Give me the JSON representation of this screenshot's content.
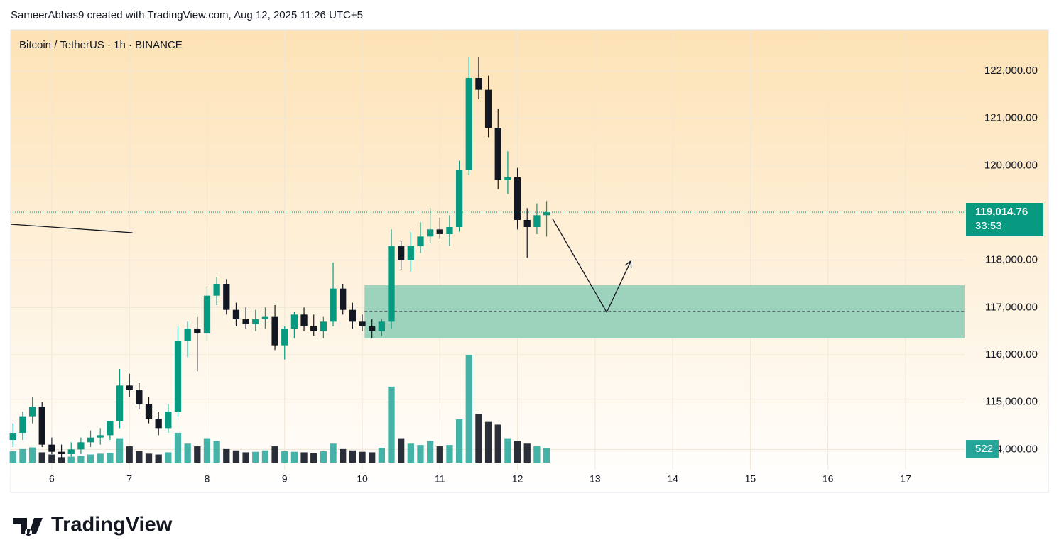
{
  "header": "SameerAbbas9 created with TradingView.com, Aug 12, 2025 11:26 UTC+5",
  "logo": "TradingView",
  "chart_data": {
    "type": "candlestick",
    "title": "Bitcoin / TetherUS · 1h · BINANCE",
    "xlim": [
      5.47,
      17.76
    ],
    "xticks": [
      6,
      7,
      8,
      9,
      10,
      11,
      12,
      13,
      14,
      15,
      16,
      17
    ],
    "ylim": [
      113720,
      122870
    ],
    "yticks": [
      {
        "value": 114000,
        "label": "114,000.00"
      },
      {
        "value": 115000,
        "label": "115,000.00"
      },
      {
        "value": 116000,
        "label": "116,000.00"
      },
      {
        "value": 117000,
        "label": "117,000.00"
      },
      {
        "value": 118000,
        "label": "118,000.00"
      },
      {
        "value": 119000,
        "label": "119,000.00"
      },
      {
        "value": 120000,
        "label": "120,000.00"
      },
      {
        "value": 121000,
        "label": "121,000.00"
      },
      {
        "value": 122000,
        "label": "122,000.00"
      }
    ],
    "volume_ylim": [
      0,
      4000
    ],
    "up_color": "#089981",
    "down_color": "#131722",
    "x": [
      5.5,
      5.625,
      5.75,
      5.875,
      6,
      6.125,
      6.25,
      6.375,
      6.5,
      6.625,
      6.75,
      6.875,
      7,
      7.125,
      7.25,
      7.375,
      7.5,
      7.625,
      7.75,
      7.875,
      8,
      8.125,
      8.25,
      8.375,
      8.5,
      8.625,
      8.75,
      8.875,
      9,
      9.125,
      9.25,
      9.375,
      9.5,
      9.625,
      9.75,
      9.875,
      10,
      10.125,
      10.25,
      10.375,
      10.5,
      10.625,
      10.75,
      10.875,
      11,
      11.125,
      11.25,
      11.375,
      11.5,
      11.625,
      11.75,
      11.875,
      12,
      12.125,
      12.25,
      12.375
    ],
    "open": [
      114200,
      114350,
      114700,
      114900,
      114100,
      113950,
      113900,
      114000,
      114150,
      114250,
      114300,
      114600,
      115350,
      115250,
      114950,
      114650,
      114450,
      114800,
      116300,
      116550,
      116450,
      117250,
      117500,
      116950,
      116750,
      116650,
      116750,
      116800,
      116200,
      116550,
      116850,
      116600,
      116500,
      116700,
      117400,
      116950,
      116700,
      116600,
      116500,
      116700,
      118300,
      118000,
      118300,
      118500,
      118650,
      118550,
      118700,
      119900,
      121850,
      121600,
      120800,
      119700,
      119750,
      118850,
      118700,
      118950
    ],
    "high": [
      114550,
      114800,
      115100,
      115000,
      114250,
      114100,
      114150,
      114250,
      114400,
      114450,
      114550,
      115700,
      115600,
      115400,
      115100,
      114800,
      114950,
      116600,
      116700,
      116800,
      117450,
      117650,
      117600,
      117100,
      117000,
      116950,
      117000,
      117050,
      116600,
      116900,
      117000,
      116850,
      116800,
      117950,
      117500,
      117100,
      116850,
      116750,
      116750,
      118650,
      118400,
      118600,
      118800,
      119100,
      118900,
      118950,
      120100,
      122300,
      122300,
      121900,
      121200,
      120300,
      119950,
      119100,
      119200,
      119250
    ],
    "low": [
      114050,
      114200,
      114550,
      114050,
      113900,
      113800,
      113850,
      113900,
      114050,
      114100,
      114200,
      114450,
      115100,
      114850,
      114550,
      114300,
      114350,
      114700,
      115950,
      115650,
      116300,
      117050,
      116850,
      116600,
      116550,
      116500,
      116550,
      116100,
      115900,
      116350,
      116500,
      116400,
      116350,
      116600,
      116850,
      116550,
      116500,
      116350,
      116400,
      116550,
      117800,
      117750,
      118150,
      118350,
      118450,
      118300,
      118600,
      119800,
      121400,
      120600,
      119500,
      119400,
      118650,
      118050,
      118550,
      118500
    ],
    "close": [
      114350,
      114700,
      114900,
      114100,
      113950,
      113900,
      114000,
      114150,
      114250,
      114300,
      114600,
      115350,
      115250,
      114950,
      114650,
      114450,
      114800,
      116300,
      116550,
      116450,
      117250,
      117500,
      116950,
      116750,
      116650,
      116750,
      116800,
      116200,
      116550,
      116850,
      116600,
      116500,
      116700,
      117400,
      116950,
      116700,
      116600,
      116500,
      116700,
      118300,
      118000,
      118300,
      118500,
      118650,
      118550,
      118700,
      119900,
      121850,
      121600,
      120800,
      119700,
      119750,
      118850,
      118700,
      118950,
      119014.76
    ],
    "close_label": "119,014.76",
    "countdown": "33:53",
    "volume": [
      420,
      500,
      560,
      380,
      300,
      200,
      220,
      250,
      300,
      330,
      360,
      900,
      600,
      420,
      330,
      300,
      380,
      1100,
      700,
      600,
      900,
      800,
      500,
      450,
      380,
      400,
      450,
      600,
      420,
      400,
      380,
      350,
      420,
      700,
      500,
      450,
      400,
      380,
      550,
      2800,
      900,
      700,
      650,
      800,
      600,
      650,
      1600,
      3970,
      1800,
      1500,
      1400,
      900,
      800,
      700,
      600,
      522
    ],
    "zone": {
      "x": [
        10.03,
        17.76
      ],
      "y": [
        116345,
        117470
      ],
      "mid": 116915,
      "color": "#9dd3bd"
    },
    "arrow": {
      "x": [
        12.45,
        13.15,
        13.46
      ],
      "y": [
        118880,
        116900,
        117980
      ]
    },
    "trendline": {
      "x": [
        5.47,
        7.04
      ],
      "y": [
        118760,
        118580
      ]
    }
  }
}
